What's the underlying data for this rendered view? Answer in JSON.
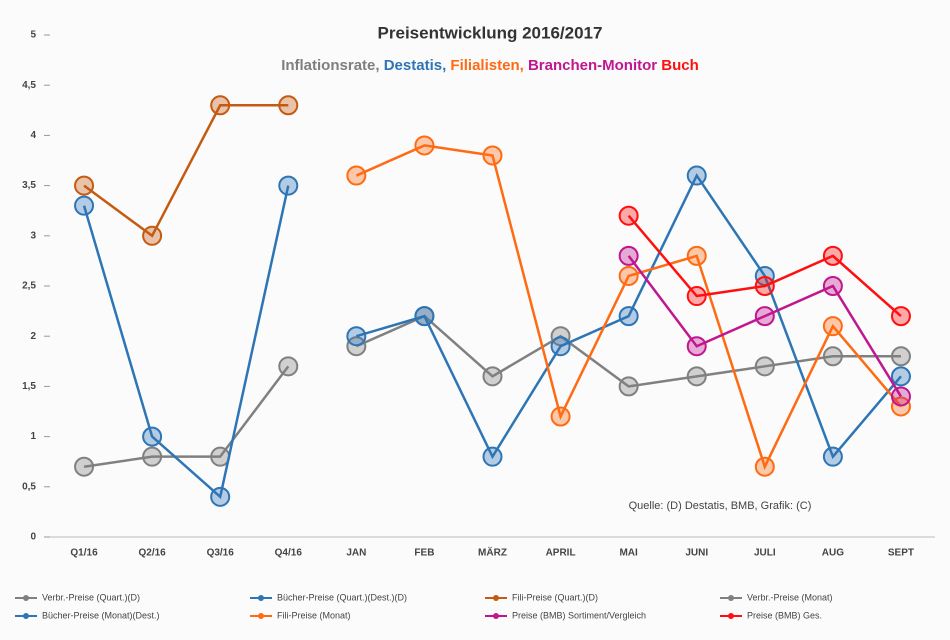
{
  "chart_data": {
    "type": "line",
    "title": "Preisentwicklung 2016/2017",
    "subtitle_parts": [
      {
        "text": "Inflationsrate, ",
        "color": "#7f7f7f"
      },
      {
        "text": "Destatis, ",
        "color": "#2e75b6"
      },
      {
        "text": "Filialisten, ",
        "color": "#ff6a13"
      },
      {
        "text": "Branchen-Monitor ",
        "color": "#c0168f"
      },
      {
        "text": "Buch",
        "color": "#ff1010"
      }
    ],
    "annotation": "Quelle: (D) Destatis, BMB, Grafik: (C)",
    "categories": [
      "Q1/16",
      "Q2/16",
      "Q3/16",
      "Q4/16",
      "JAN",
      "FEB",
      "MÄRZ",
      "APRIL",
      "MAI",
      "JUNI",
      "JULI",
      "AUG",
      "SEPT"
    ],
    "ylim": [
      0,
      5
    ],
    "yticks": [
      0,
      {
        "value": 0.5,
        "label": "0,5"
      },
      1,
      {
        "value": 1.5,
        "label": "1,5"
      },
      2,
      {
        "value": 2.5,
        "label": "2,5"
      },
      3,
      {
        "value": 3.5,
        "label": "3,5"
      },
      4,
      {
        "value": 4.5,
        "label": "4,5"
      },
      5
    ],
    "series": [
      {
        "name": "Verbr.-Preise (Quart.)(D)",
        "color": "#808080",
        "values": [
          0.7,
          0.8,
          0.8,
          1.7,
          null,
          null,
          null,
          null,
          null,
          null,
          null,
          null,
          null
        ]
      },
      {
        "name": "Bücher-Preise (Quart.)(Dest.)(D)",
        "color": "#2e75b6",
        "values": [
          3.3,
          1.0,
          0.4,
          3.5,
          null,
          null,
          null,
          null,
          null,
          null,
          null,
          null,
          null
        ]
      },
      {
        "name": "Fili-Preise (Quart.)(D)",
        "color": "#c55a11",
        "values": [
          3.5,
          3.0,
          4.3,
          4.3,
          null,
          null,
          null,
          null,
          null,
          null,
          null,
          null,
          null
        ]
      },
      {
        "name": "Verbr.-Preise (Monat)",
        "color": "#808080",
        "values": [
          null,
          null,
          null,
          null,
          1.9,
          2.2,
          1.6,
          2.0,
          1.5,
          1.6,
          1.7,
          1.8,
          1.8
        ]
      },
      {
        "name": "Bücher-Preise (Monat)(Dest.)",
        "color": "#2e75b6",
        "values": [
          null,
          null,
          null,
          null,
          2.0,
          2.2,
          0.8,
          1.9,
          2.2,
          3.6,
          2.6,
          0.8,
          1.6
        ]
      },
      {
        "name": "Fili-Preise (Monat)",
        "color": "#ff6a13",
        "values": [
          null,
          null,
          null,
          null,
          3.6,
          3.9,
          3.8,
          1.2,
          2.6,
          2.8,
          0.7,
          2.1,
          1.3
        ]
      },
      {
        "name": "Preise (BMB) Sortiment/Vergleich",
        "color": "#c0168f",
        "values": [
          null,
          null,
          null,
          null,
          null,
          null,
          null,
          null,
          2.8,
          1.9,
          2.2,
          2.5,
          1.4
        ]
      },
      {
        "name": "Preise (BMB) Ges.",
        "color": "#ff1010",
        "values": [
          null,
          null,
          null,
          null,
          null,
          null,
          null,
          null,
          3.2,
          2.4,
          2.5,
          2.8,
          2.2
        ]
      }
    ]
  }
}
